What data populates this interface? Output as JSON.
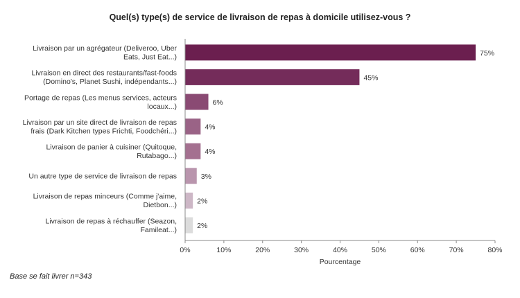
{
  "footnote": "Base se fait livrer n=343",
  "chart_data": {
    "type": "bar",
    "orientation": "horizontal",
    "title": "Quel(s) type(s) de service de livraison de repas à domicile utilisez-vous ?",
    "xlabel": "Pourcentage",
    "ylabel": "",
    "xlim": [
      0,
      80
    ],
    "x_ticks": [
      "0%",
      "10%",
      "20%",
      "30%",
      "40%",
      "50%",
      "60%",
      "70%",
      "80%"
    ],
    "grid": false,
    "categories": [
      [
        "Livraison par un agrégateur (Deliveroo, Uber",
        "Eats, Just Eat...)"
      ],
      [
        "Livraison en direct des restaurants/fast-foods",
        "(Domino's, Planet Sushi, indépendants...)"
      ],
      [
        "Portage de repas (Les menus services, acteurs",
        "locaux...)"
      ],
      [
        "Livraison par un site direct de livraison de repas",
        "frais (Dark Kitchen types Frichti, Foodchéri...)"
      ],
      [
        "Livraison de panier à cuisiner (Quitoque,",
        "Rutabago...)"
      ],
      [
        "Un autre type de service de livraison de repas"
      ],
      [
        "Livraison de repas minceurs (Comme j'aime,",
        "Dietbon...)"
      ],
      [
        "Livraison de repas à réchauffer (Seazon,",
        "Famileat...)"
      ]
    ],
    "values": [
      75,
      45,
      6,
      4,
      4,
      3,
      2,
      2
    ],
    "value_labels": [
      "75%",
      "45%",
      "6%",
      "4%",
      "4%",
      "3%",
      "2%",
      "2%"
    ],
    "colors": [
      "#6b1f4f",
      "#742c5a",
      "#8a4a73",
      "#9a6386",
      "#a47090",
      "#b995ad",
      "#cdb7c6",
      "#dcdcdc"
    ]
  }
}
